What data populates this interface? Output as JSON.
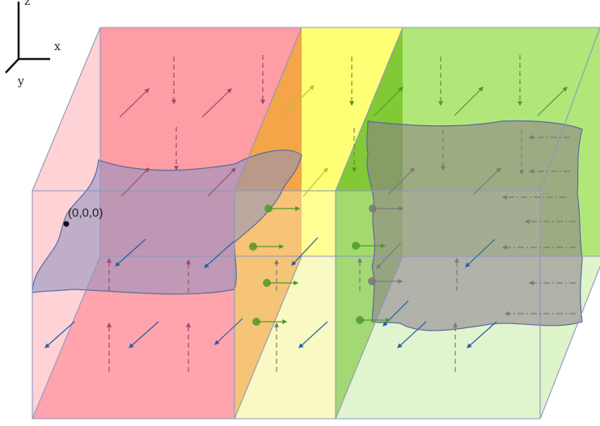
{
  "axes": {
    "z": "z",
    "x": "x",
    "y": "y"
  },
  "origin": {
    "label": "(0,0,0)"
  },
  "colors": {
    "red_face": "#ff8f98",
    "yellow_face": "#ffff66",
    "green_face": "#9de05a",
    "interface_surface": "#8a8fbf",
    "arrow_blue": "#2a5ea8",
    "arrow_red": "#9a4d6e",
    "arrow_green": "#4f9a2a",
    "arrow_gray": "#7a7a7a"
  },
  "slabs": [
    "red",
    "yellow",
    "green"
  ]
}
